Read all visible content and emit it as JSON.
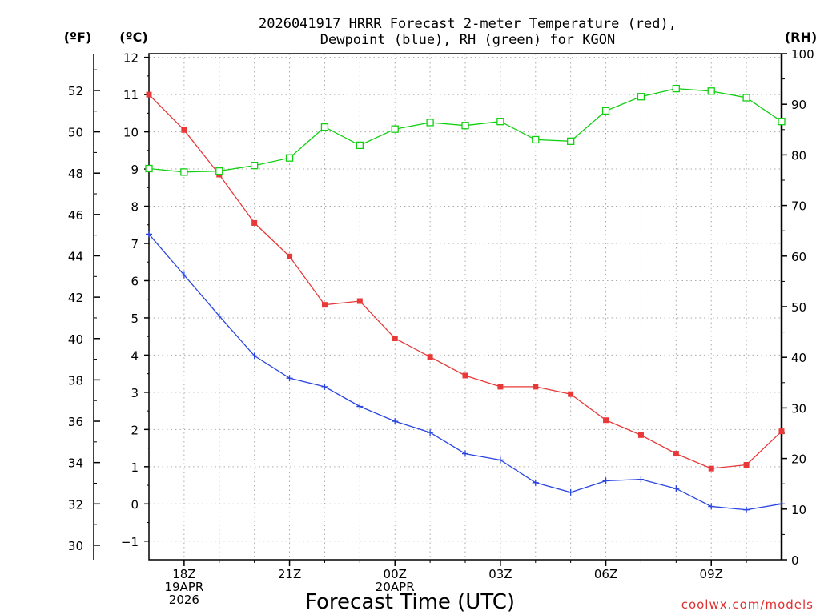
{
  "chart_data": {
    "type": "line",
    "title_line1": "2026041917 HRRR Forecast 2-meter Temperature (red),",
    "title_line2": "Dewpoint (blue), RH (green) for KGON",
    "unit_left_f": "(ºF)",
    "unit_left_c": "(ºC)",
    "unit_right": "(RH)",
    "xlabel": "Forecast Time (UTC)",
    "credit": "coolwx.com/models",
    "x_hours": [
      17,
      18,
      19,
      20,
      21,
      22,
      23,
      24,
      25,
      26,
      27,
      28,
      29,
      30,
      31,
      32,
      33,
      34,
      35
    ],
    "x_ticks": [
      {
        "hour": 18,
        "lines": [
          "18Z",
          "19APR",
          "2026"
        ]
      },
      {
        "hour": 21,
        "lines": [
          "21Z"
        ]
      },
      {
        "hour": 24,
        "lines": [
          "00Z",
          "20APR"
        ]
      },
      {
        "hour": 27,
        "lines": [
          "03Z"
        ]
      },
      {
        "hour": 30,
        "lines": [
          "06Z"
        ]
      },
      {
        "hour": 33,
        "lines": [
          "09Z"
        ]
      }
    ],
    "xlim": [
      17,
      35
    ],
    "celsius_ylim": [
      -1.5,
      12.1
    ],
    "celsius_ticks": [
      "-1",
      "0",
      "1",
      "2",
      "3",
      "4",
      "5",
      "6",
      "7",
      "8",
      "9",
      "10",
      "11",
      "12"
    ],
    "fahrenheit_ticks": [
      "30",
      "32",
      "34",
      "36",
      "38",
      "40",
      "42",
      "44",
      "46",
      "48",
      "50",
      "52"
    ],
    "rh_ylim": [
      0,
      100
    ],
    "rh_ticks": [
      "0",
      "10",
      "20",
      "30",
      "40",
      "50",
      "60",
      "70",
      "80",
      "90",
      "100"
    ],
    "series": [
      {
        "name": "Temperature (°C)",
        "color": "#e83838",
        "marker": "filled-square",
        "axis": "celsius",
        "values": [
          11.0,
          10.05,
          8.85,
          7.55,
          6.65,
          5.35,
          5.45,
          4.45,
          3.95,
          3.45,
          3.15,
          3.15,
          2.95,
          2.25,
          1.85,
          1.35,
          0.95,
          1.05,
          1.95
        ]
      },
      {
        "name": "Dewpoint (°C)",
        "color": "#2a45e0",
        "marker": "plus",
        "axis": "celsius",
        "values": [
          7.25,
          6.15,
          5.05,
          3.98,
          3.38,
          3.15,
          2.62,
          2.22,
          1.92,
          1.35,
          1.18,
          0.57,
          0.31,
          0.62,
          0.66,
          0.41,
          -0.07,
          -0.16,
          0.0
        ]
      },
      {
        "name": "RH (%)",
        "color": "#10d010",
        "marker": "open-square",
        "axis": "rh",
        "values": [
          77.3,
          76.6,
          76.8,
          77.9,
          79.4,
          85.5,
          81.9,
          85.1,
          86.4,
          85.8,
          86.6,
          83.0,
          82.7,
          88.7,
          91.5,
          93.1,
          92.6,
          91.3,
          86.6
        ]
      }
    ]
  }
}
